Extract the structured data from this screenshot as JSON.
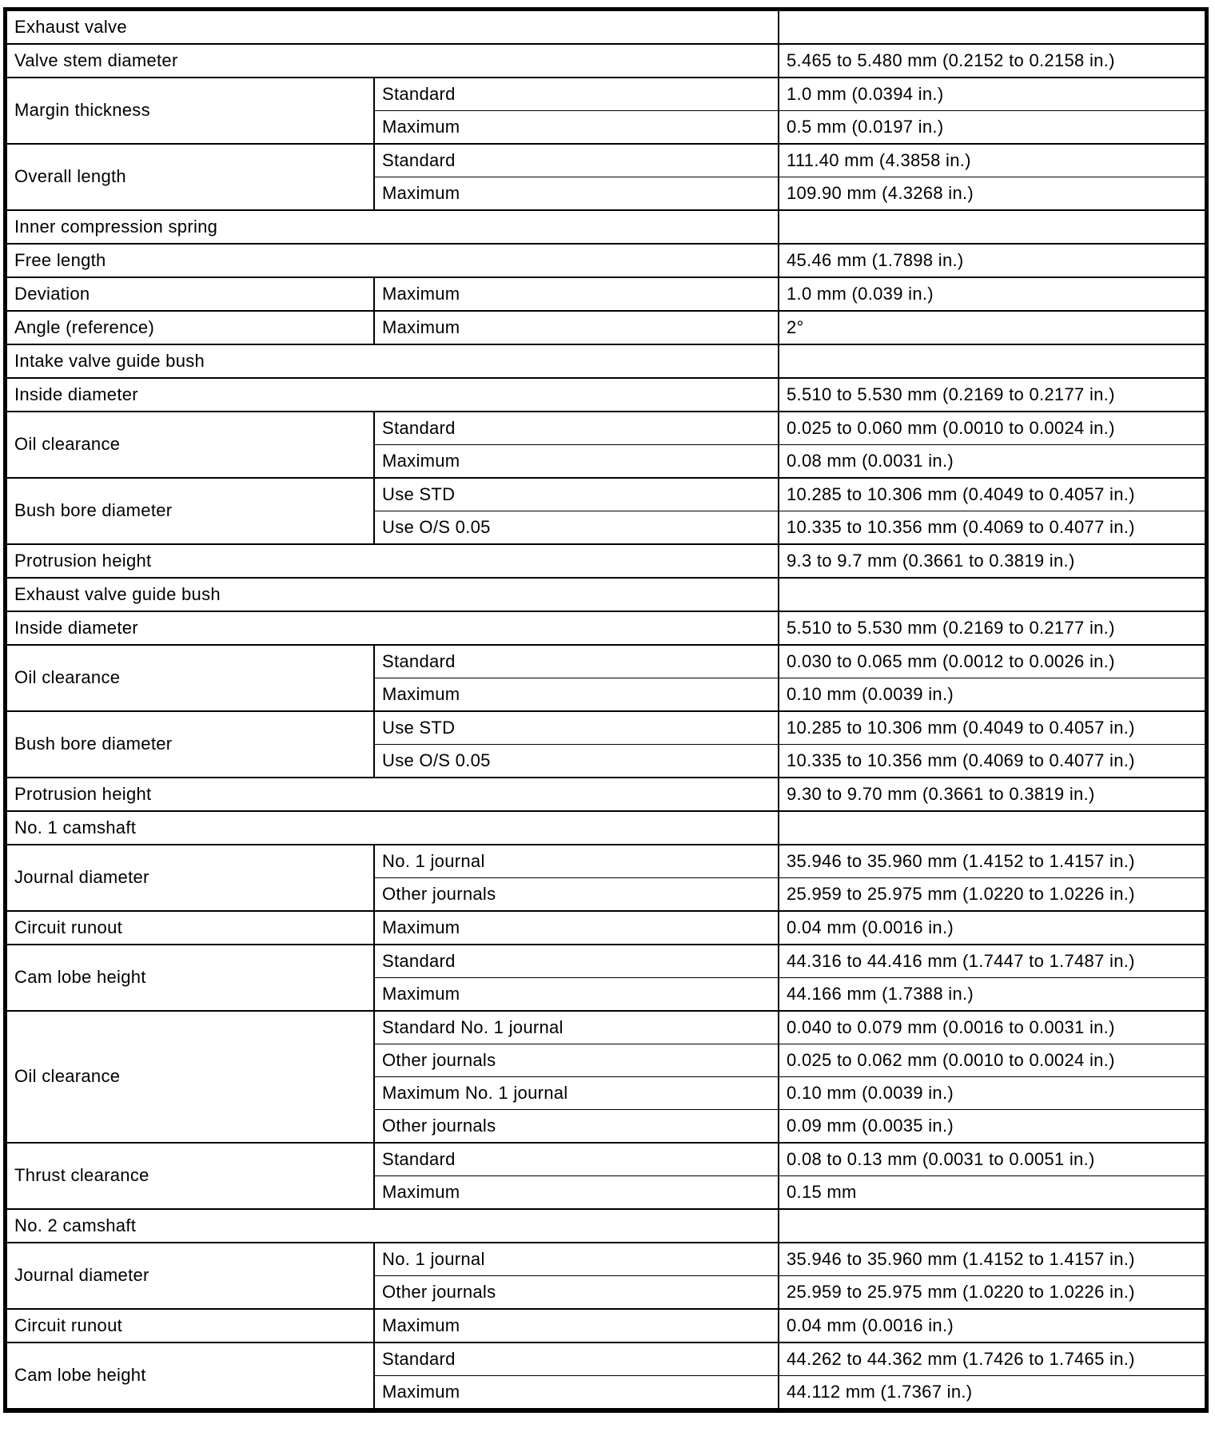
{
  "table": {
    "columns": [
      "item",
      "qualifier",
      "value"
    ],
    "rows": [
      {
        "kind": "section",
        "label": "Exhaust valve"
      },
      {
        "kind": "spec",
        "label": "Valve stem diameter",
        "value": "5.465 to 5.480 mm (0.2152 to 0.2158 in.)"
      },
      {
        "kind": "group",
        "label": "Margin thickness",
        "items": [
          {
            "qualifier": "Standard",
            "value": "1.0 mm (0.0394 in.)"
          },
          {
            "qualifier": "Maximum",
            "value": "0.5 mm (0.0197 in.)"
          }
        ]
      },
      {
        "kind": "group",
        "label": "Overall length",
        "items": [
          {
            "qualifier": "Standard",
            "value": "111.40 mm (4.3858 in.)"
          },
          {
            "qualifier": "Maximum",
            "value": "109.90 mm (4.3268 in.)"
          }
        ]
      },
      {
        "kind": "section",
        "label": "Inner compression spring"
      },
      {
        "kind": "spec",
        "label": "Free length",
        "value": "45.46 mm (1.7898 in.)"
      },
      {
        "kind": "group",
        "label": "Deviation",
        "items": [
          {
            "qualifier": "Maximum",
            "value": "1.0 mm (0.039 in.)"
          }
        ]
      },
      {
        "kind": "group",
        "label": "Angle (reference)",
        "items": [
          {
            "qualifier": "Maximum",
            "value": "2°"
          }
        ]
      },
      {
        "kind": "section",
        "label": "Intake valve guide bush"
      },
      {
        "kind": "spec",
        "label": "Inside diameter",
        "value": "5.510 to 5.530 mm (0.2169 to 0.2177 in.)"
      },
      {
        "kind": "group",
        "label": "Oil clearance",
        "items": [
          {
            "qualifier": "Standard",
            "value": "0.025 to 0.060 mm (0.0010 to 0.0024 in.)"
          },
          {
            "qualifier": "Maximum",
            "value": "0.08 mm (0.0031 in.)"
          }
        ]
      },
      {
        "kind": "group",
        "label": "Bush bore diameter",
        "items": [
          {
            "qualifier": "Use STD",
            "value": "10.285 to 10.306 mm (0.4049 to 0.4057 in.)"
          },
          {
            "qualifier": "Use O/S 0.05",
            "value": "10.335 to 10.356 mm (0.4069 to 0.4077 in.)"
          }
        ]
      },
      {
        "kind": "spec",
        "label": "Protrusion height",
        "value": "9.3 to 9.7 mm (0.3661 to 0.3819 in.)"
      },
      {
        "kind": "section",
        "label": "Exhaust valve guide bush"
      },
      {
        "kind": "spec",
        "label": "Inside diameter",
        "value": "5.510 to 5.530 mm (0.2169 to 0.2177 in.)"
      },
      {
        "kind": "group",
        "label": "Oil clearance",
        "items": [
          {
            "qualifier": "Standard",
            "value": "0.030 to 0.065 mm (0.0012 to 0.0026 in.)"
          },
          {
            "qualifier": "Maximum",
            "value": "0.10 mm (0.0039 in.)"
          }
        ]
      },
      {
        "kind": "group",
        "label": "Bush bore diameter",
        "items": [
          {
            "qualifier": "Use STD",
            "value": "10.285 to 10.306 mm (0.4049 to 0.4057 in.)"
          },
          {
            "qualifier": "Use O/S 0.05",
            "value": "10.335 to 10.356 mm (0.4069 to 0.4077 in.)"
          }
        ]
      },
      {
        "kind": "spec",
        "label": "Protrusion height",
        "value": "9.30 to 9.70 mm (0.3661 to 0.3819 in.)"
      },
      {
        "kind": "section",
        "label": "No. 1 camshaft"
      },
      {
        "kind": "group",
        "label": "Journal diameter",
        "items": [
          {
            "qualifier": "No. 1 journal",
            "value": "35.946 to 35.960 mm (1.4152 to 1.4157 in.)"
          },
          {
            "qualifier": "Other journals",
            "value": "25.959 to 25.975 mm (1.0220 to 1.0226 in.)"
          }
        ]
      },
      {
        "kind": "group",
        "label": "Circuit runout",
        "items": [
          {
            "qualifier": "Maximum",
            "value": "0.04 mm (0.0016 in.)"
          }
        ]
      },
      {
        "kind": "group",
        "label": "Cam lobe height",
        "items": [
          {
            "qualifier": "Standard",
            "value": "44.316 to 44.416 mm (1.7447 to 1.7487 in.)"
          },
          {
            "qualifier": "Maximum",
            "value": "44.166 mm (1.7388 in.)"
          }
        ]
      },
      {
        "kind": "group",
        "label": "Oil clearance",
        "items": [
          {
            "qualifier": "Standard No. 1 journal",
            "value": "0.040 to 0.079 mm (0.0016 to 0.0031 in.)"
          },
          {
            "qualifier": "Other journals",
            "value": "0.025 to 0.062 mm (0.0010 to 0.0024 in.)"
          },
          {
            "qualifier": "Maximum No. 1 journal",
            "value": "0.10 mm (0.0039 in.)"
          },
          {
            "qualifier": "Other journals",
            "value": "0.09 mm (0.0035 in.)"
          }
        ]
      },
      {
        "kind": "group",
        "label": "Thrust clearance",
        "items": [
          {
            "qualifier": "Standard",
            "value": "0.08 to 0.13 mm (0.0031 to 0.0051 in.)"
          },
          {
            "qualifier": "Maximum",
            "value": "0.15 mm"
          }
        ]
      },
      {
        "kind": "section",
        "label": "No. 2 camshaft"
      },
      {
        "kind": "group",
        "label": "Journal diameter",
        "items": [
          {
            "qualifier": "No. 1 journal",
            "value": "35.946 to 35.960 mm (1.4152 to 1.4157 in.)"
          },
          {
            "qualifier": "Other journals",
            "value": "25.959 to 25.975 mm (1.0220 to 1.0226 in.)"
          }
        ]
      },
      {
        "kind": "group",
        "label": "Circuit runout",
        "items": [
          {
            "qualifier": "Maximum",
            "value": "0.04 mm (0.0016 in.)"
          }
        ]
      },
      {
        "kind": "group",
        "label": "Cam lobe height",
        "items": [
          {
            "qualifier": "Standard",
            "value": "44.262 to 44.362 mm (1.7426 to 1.7465 in.)"
          },
          {
            "qualifier": "Maximum",
            "value": "44.112 mm (1.7367 in.)"
          }
        ]
      }
    ]
  }
}
